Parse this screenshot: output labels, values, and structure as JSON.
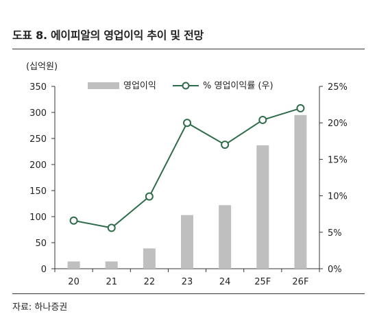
{
  "figure": {
    "title": "도표 8. 에이피알의 영업이익 추이 및 전망",
    "source": "자료: 하나증권"
  },
  "chart_data": {
    "type": "bar+line",
    "unit_label": "(십억원)",
    "categories": [
      "20",
      "21",
      "22",
      "23",
      "24",
      "25F",
      "26F"
    ],
    "series": [
      {
        "name": "영업이익",
        "type": "bar",
        "axis": "left",
        "color": "#bfbfbf",
        "values": [
          14,
          14,
          39,
          103,
          122,
          237,
          295
        ]
      },
      {
        "name": "% 영업이익률 (우)",
        "type": "line",
        "axis": "right",
        "color": "#2e6b4a",
        "values": [
          6.6,
          5.6,
          9.9,
          20.0,
          17.0,
          20.4,
          22.0
        ]
      }
    ],
    "y_left": {
      "range": [
        0,
        350
      ],
      "ticks": [
        "0",
        "50",
        "100",
        "150",
        "200",
        "250",
        "300",
        "350"
      ]
    },
    "y_right": {
      "range": [
        0,
        25
      ],
      "ticks": [
        "0%",
        "5%",
        "10%",
        "15%",
        "20%",
        "25%"
      ]
    },
    "grid": false,
    "legend_position": "top"
  }
}
